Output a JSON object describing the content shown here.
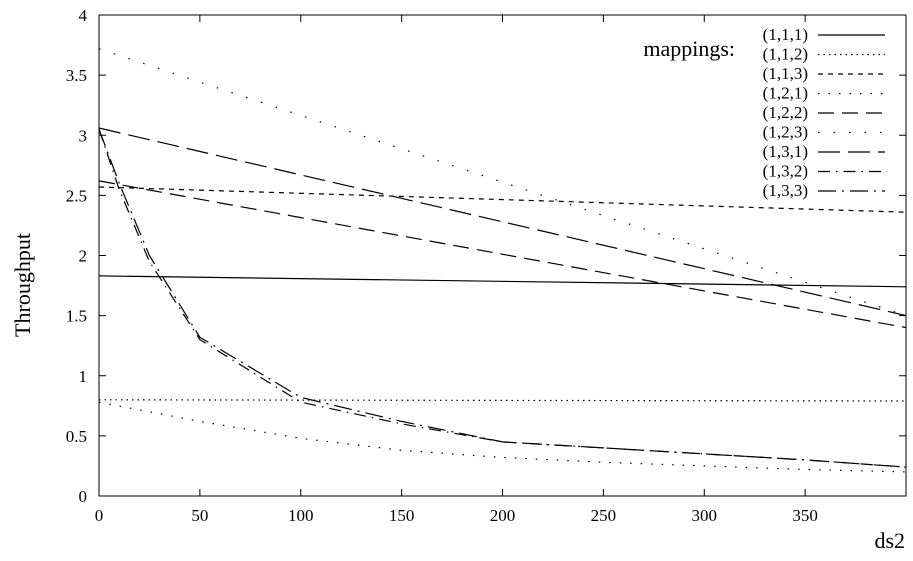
{
  "chart_data": {
    "type": "line",
    "xlabel": "ds2",
    "ylabel": "Throughput",
    "xlim": [
      0,
      400
    ],
    "ylim": [
      0,
      4
    ],
    "xticks": [
      "0",
      "50",
      "100",
      "150",
      "200",
      "250",
      "300",
      "350"
    ],
    "yticks": [
      "0",
      "0.5",
      "1",
      "1.5",
      "2",
      "2.5",
      "3",
      "3.5",
      "4"
    ],
    "legend_title": "mappings:",
    "legend_position": "top-right",
    "grid": false,
    "series": [
      {
        "name": "(1,1,1)",
        "dash": "solid",
        "x": [
          0,
          400
        ],
        "y": [
          1.83,
          1.74
        ]
      },
      {
        "name": "(1,1,2)",
        "dash": "dot",
        "x": [
          0,
          400
        ],
        "y": [
          0.8,
          0.79
        ]
      },
      {
        "name": "(1,1,3)",
        "dash": "short-dash",
        "x": [
          0,
          400
        ],
        "y": [
          2.57,
          2.36
        ]
      },
      {
        "name": "(1,2,1)",
        "dash": "sparse-dot",
        "x": [
          0,
          50,
          100,
          150,
          200,
          250,
          300,
          350,
          400
        ],
        "y": [
          0.78,
          0.62,
          0.48,
          0.38,
          0.32,
          0.28,
          0.25,
          0.22,
          0.2
        ]
      },
      {
        "name": "(1,2,2)",
        "dash": "long-dash",
        "x": [
          0,
          400
        ],
        "y": [
          2.62,
          1.4
        ]
      },
      {
        "name": "(1,2,3)",
        "dash": "wide-dot",
        "x": [
          0,
          400
        ],
        "y": [
          3.72,
          1.5
        ]
      },
      {
        "name": "(1,3,1)",
        "dash": "longer-dash",
        "x": [
          0,
          400
        ],
        "y": [
          3.06,
          1.5
        ]
      },
      {
        "name": "(1,3,2)",
        "dash": "dash-dot-sparse",
        "x": [
          0,
          10,
          25,
          50,
          100,
          150,
          200,
          250,
          300,
          350,
          400
        ],
        "y": [
          3.05,
          2.55,
          1.95,
          1.3,
          0.78,
          0.6,
          0.45,
          0.4,
          0.35,
          0.3,
          0.24
        ]
      },
      {
        "name": "(1,3,3)",
        "dash": "dash-dot",
        "x": [
          0,
          10,
          25,
          50,
          100,
          150,
          200,
          250,
          300,
          350,
          400
        ],
        "y": [
          3.05,
          2.6,
          2.0,
          1.32,
          0.82,
          0.62,
          0.45,
          0.4,
          0.35,
          0.3,
          0.24
        ]
      }
    ]
  }
}
